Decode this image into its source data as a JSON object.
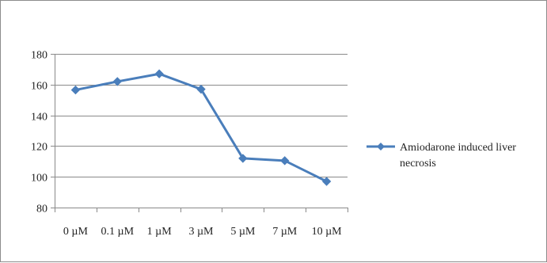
{
  "chart_data": {
    "type": "line",
    "title": "",
    "xlabel": "",
    "ylabel": "",
    "categories": [
      "0 µM",
      "0.1 µM",
      "1 µM",
      "3 µM",
      "5 µM",
      "7 µM",
      "10 µM"
    ],
    "series": [
      {
        "name": "Amiodarone induced liver necrosis",
        "values": [
          156.5,
          162,
          167,
          157,
          112,
          110.5,
          97
        ],
        "color": "#4a7ebb",
        "marker": "diamond"
      }
    ],
    "ylim": [
      80,
      180
    ],
    "yticks": [
      80,
      100,
      120,
      140,
      160,
      180
    ],
    "grid": "horizontal",
    "legend_position": "right",
    "legend_lines": [
      "Amiodarone induced liver",
      "necrosis"
    ]
  }
}
